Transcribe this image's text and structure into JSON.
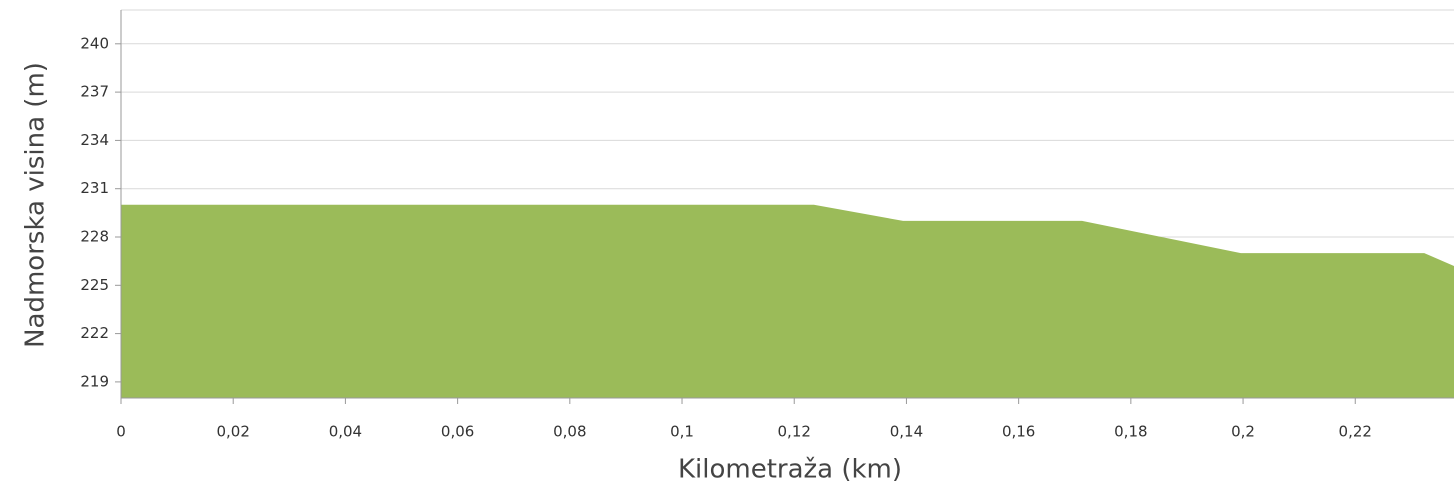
{
  "chart_data": {
    "type": "area",
    "x_label": "Kilometraža (km)",
    "y_label": "Nadmorska visina (m)",
    "x": [
      0,
      0.1235,
      0.1394,
      0.1713,
      0.1996,
      0.2323,
      0.2376
    ],
    "series": [
      {
        "color": "#9bbb59",
        "values": [
          230,
          230,
          229,
          229,
          227,
          227,
          226.2
        ]
      }
    ],
    "xlim": [
      0,
      0.2376
    ],
    "ylim": [
      218,
      242.1
    ],
    "xticks": [
      0,
      {
        "value": 0.02,
        "label": "0,02"
      },
      {
        "value": 0.04,
        "label": "0,04"
      },
      {
        "value": 0.06,
        "label": "0,06"
      },
      {
        "value": 0.08,
        "label": "0,08"
      },
      {
        "value": 0.1,
        "label": "0,1"
      },
      {
        "value": 0.12,
        "label": "0,12"
      },
      {
        "value": 0.14,
        "label": "0,14"
      },
      {
        "value": 0.16,
        "label": "0,16"
      },
      {
        "value": 0.18,
        "label": "0,18"
      },
      {
        "value": 0.2,
        "label": "0,2"
      },
      {
        "value": 0.22,
        "label": "0,22"
      }
    ],
    "yticks": [
      219,
      222,
      225,
      228,
      231,
      234,
      237,
      240
    ],
    "grid": true
  }
}
